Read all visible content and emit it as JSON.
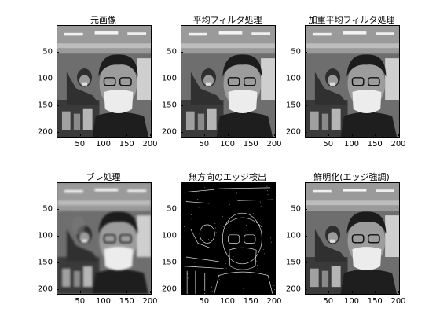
{
  "panels": [
    {
      "title": "元画像",
      "mode": "gray"
    },
    {
      "title": "平均フィルタ処理",
      "mode": "gray"
    },
    {
      "title": "加重平均フィルタ処理",
      "mode": "gray"
    },
    {
      "title": "ブレ処理",
      "mode": "blur"
    },
    {
      "title": "無方向のエッジ検出",
      "mode": "edge"
    },
    {
      "title": "鮮明化(エッジ強調)",
      "mode": "gray"
    }
  ],
  "axis": {
    "yticks": [
      "50",
      "100",
      "150",
      "200"
    ],
    "xticks": [
      "50",
      "100",
      "150",
      "200"
    ]
  }
}
